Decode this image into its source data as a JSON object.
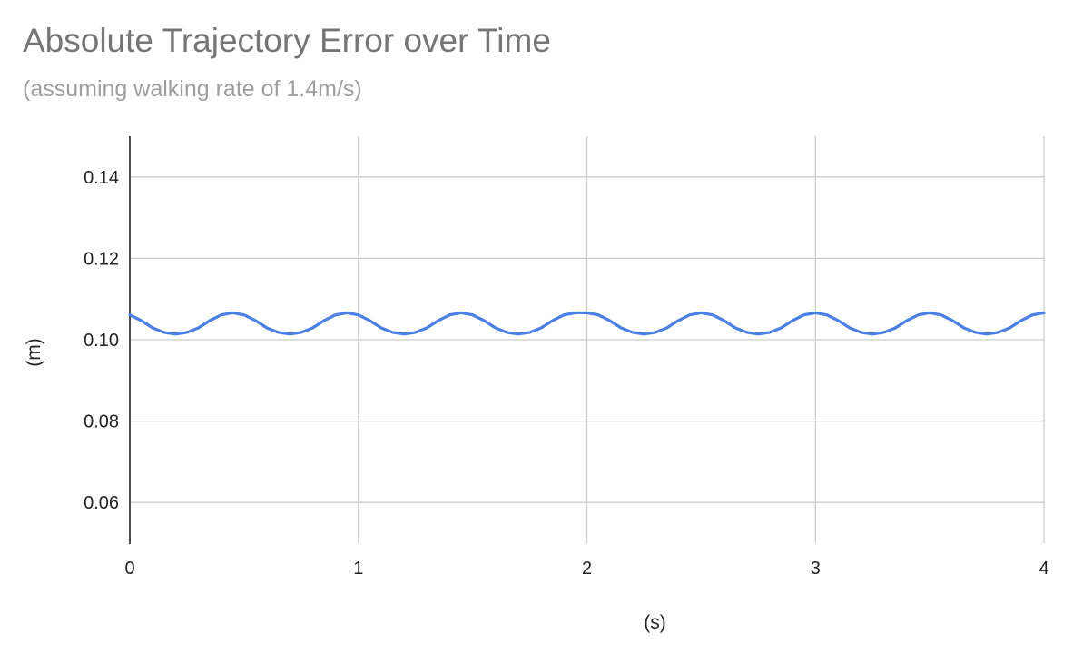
{
  "chart_data": {
    "type": "line",
    "title": "Absolute Trajectory Error over Time",
    "subtitle": "(assuming walking rate of 1.4m/s)",
    "xlabel": "(s)",
    "ylabel": "(m)",
    "xlim": [
      0,
      4
    ],
    "ylim": [
      0.05,
      0.15
    ],
    "xticks": [
      0,
      1,
      2,
      3,
      4
    ],
    "yticks": [
      0.06,
      0.08,
      0.1,
      0.12,
      0.14
    ],
    "xtick_labels": [
      "0",
      "1",
      "2",
      "3",
      "4"
    ],
    "ytick_labels": [
      "0.06",
      "0.08",
      "0.10",
      "0.12",
      "0.14"
    ],
    "grid": true,
    "legend": "none",
    "series": [
      {
        "color": "#4a7fe3",
        "x": [
          0.0,
          0.05,
          0.1,
          0.15,
          0.2,
          0.25,
          0.3,
          0.35,
          0.4,
          0.45,
          0.5,
          0.55,
          0.6,
          0.65,
          0.7,
          0.75,
          0.8,
          0.85,
          0.9,
          0.95,
          1.0,
          1.05,
          1.1,
          1.15,
          1.2,
          1.25,
          1.3,
          1.35,
          1.4,
          1.45,
          1.5,
          1.55,
          1.6,
          1.65,
          1.7,
          1.75,
          1.8,
          1.85,
          1.9,
          1.95,
          2.0,
          2.05,
          2.1,
          2.15,
          2.2,
          2.25,
          2.3,
          2.35,
          2.4,
          2.45,
          2.5,
          2.55,
          2.6,
          2.65,
          2.7,
          2.75,
          2.8,
          2.85,
          2.9,
          2.95,
          3.0,
          3.05,
          3.1,
          3.15,
          3.2,
          3.25,
          3.3,
          3.35,
          3.4,
          3.45,
          3.5,
          3.55,
          3.6,
          3.65,
          3.7,
          3.75,
          3.8,
          3.85,
          3.9,
          3.95,
          4.0
        ],
        "y": [
          0.1061,
          0.1047,
          0.1029,
          0.1018,
          0.1014,
          0.1018,
          0.1029,
          0.1047,
          0.1061,
          0.1066,
          0.1061,
          0.1047,
          0.1029,
          0.1018,
          0.1014,
          0.1018,
          0.1029,
          0.1047,
          0.1061,
          0.1066,
          0.1061,
          0.1047,
          0.1029,
          0.1018,
          0.1014,
          0.1018,
          0.1029,
          0.1047,
          0.1061,
          0.1066,
          0.1061,
          0.1047,
          0.1029,
          0.1018,
          0.1014,
          0.1018,
          0.1029,
          0.1047,
          0.1061,
          0.1066,
          0.1066,
          0.1061,
          0.1047,
          0.1029,
          0.1018,
          0.1014,
          0.1018,
          0.1029,
          0.1047,
          0.1061,
          0.1066,
          0.1061,
          0.1047,
          0.1029,
          0.1018,
          0.1014,
          0.1018,
          0.1029,
          0.1047,
          0.1061,
          0.1066,
          0.1061,
          0.1047,
          0.1029,
          0.1018,
          0.1014,
          0.1018,
          0.1029,
          0.1047,
          0.1061,
          0.1066,
          0.1061,
          0.1047,
          0.1029,
          0.1018,
          0.1014,
          0.1018,
          0.1029,
          0.1047,
          0.1061,
          0.1066
        ]
      }
    ]
  }
}
